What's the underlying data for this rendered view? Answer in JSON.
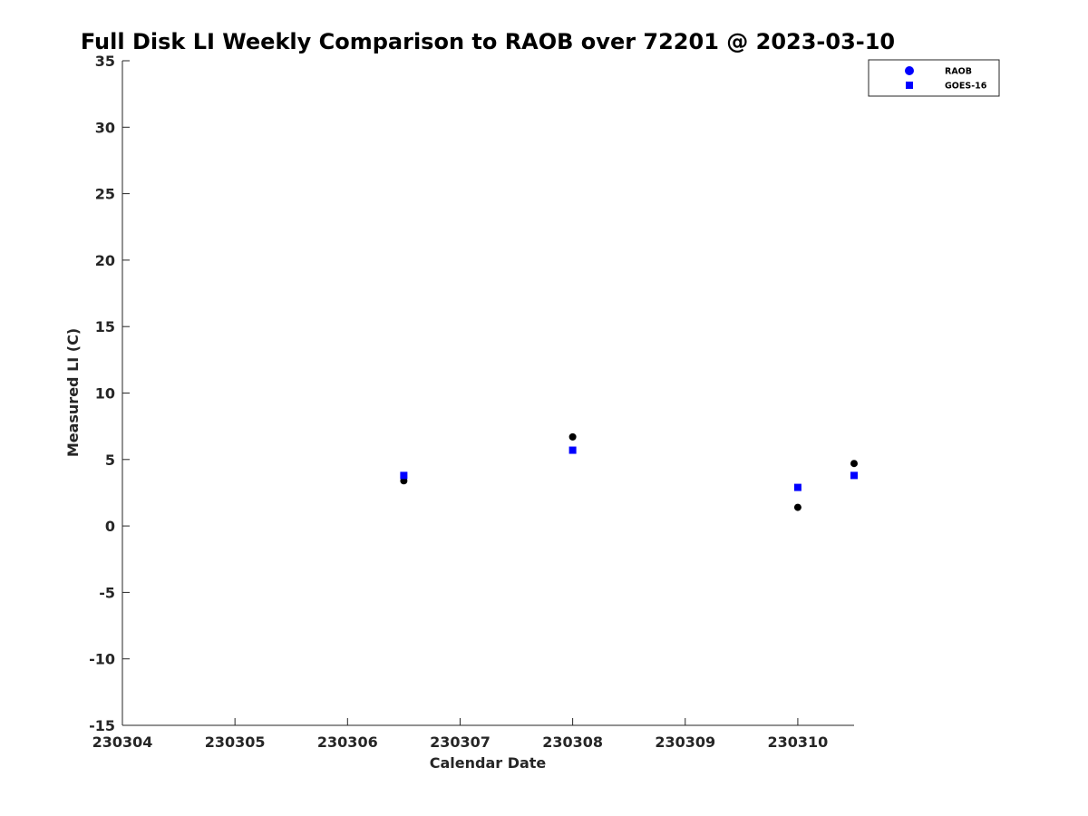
{
  "chart_data": {
    "type": "scatter",
    "title": "Full Disk LI Weekly Comparison to RAOB over 72201 @ 2023-03-10",
    "xlabel": "Calendar Date",
    "ylabel": "Measured LI (C)",
    "xlim": [
      230304,
      230310.5
    ],
    "ylim": [
      -15,
      35
    ],
    "xticks": [
      230304,
      230305,
      230306,
      230307,
      230308,
      230309,
      230310
    ],
    "xtick_labels": [
      "230304",
      "230305",
      "230306",
      "230307",
      "230308",
      "230309",
      "230310"
    ],
    "yticks": [
      -15,
      -10,
      -5,
      0,
      5,
      10,
      15,
      20,
      25,
      30,
      35
    ],
    "ytick_labels": [
      "-15",
      "-10",
      "-5",
      "0",
      "5",
      "10",
      "15",
      "20",
      "25",
      "30",
      "35"
    ],
    "legend_position": "top-right",
    "series": [
      {
        "name": "RAOB",
        "marker": "circle",
        "color": "#000000",
        "legend_color": "#0000ff",
        "x": [
          230306.5,
          230308.0,
          230310.0,
          230310.5
        ],
        "y": [
          3.4,
          6.7,
          1.4,
          4.7
        ]
      },
      {
        "name": "GOES-16",
        "marker": "square",
        "color": "#0000ff",
        "legend_color": "#0000ff",
        "x": [
          230306.5,
          230308.0,
          230310.0,
          230310.5
        ],
        "y": [
          3.8,
          5.7,
          2.9,
          3.8
        ]
      }
    ]
  }
}
